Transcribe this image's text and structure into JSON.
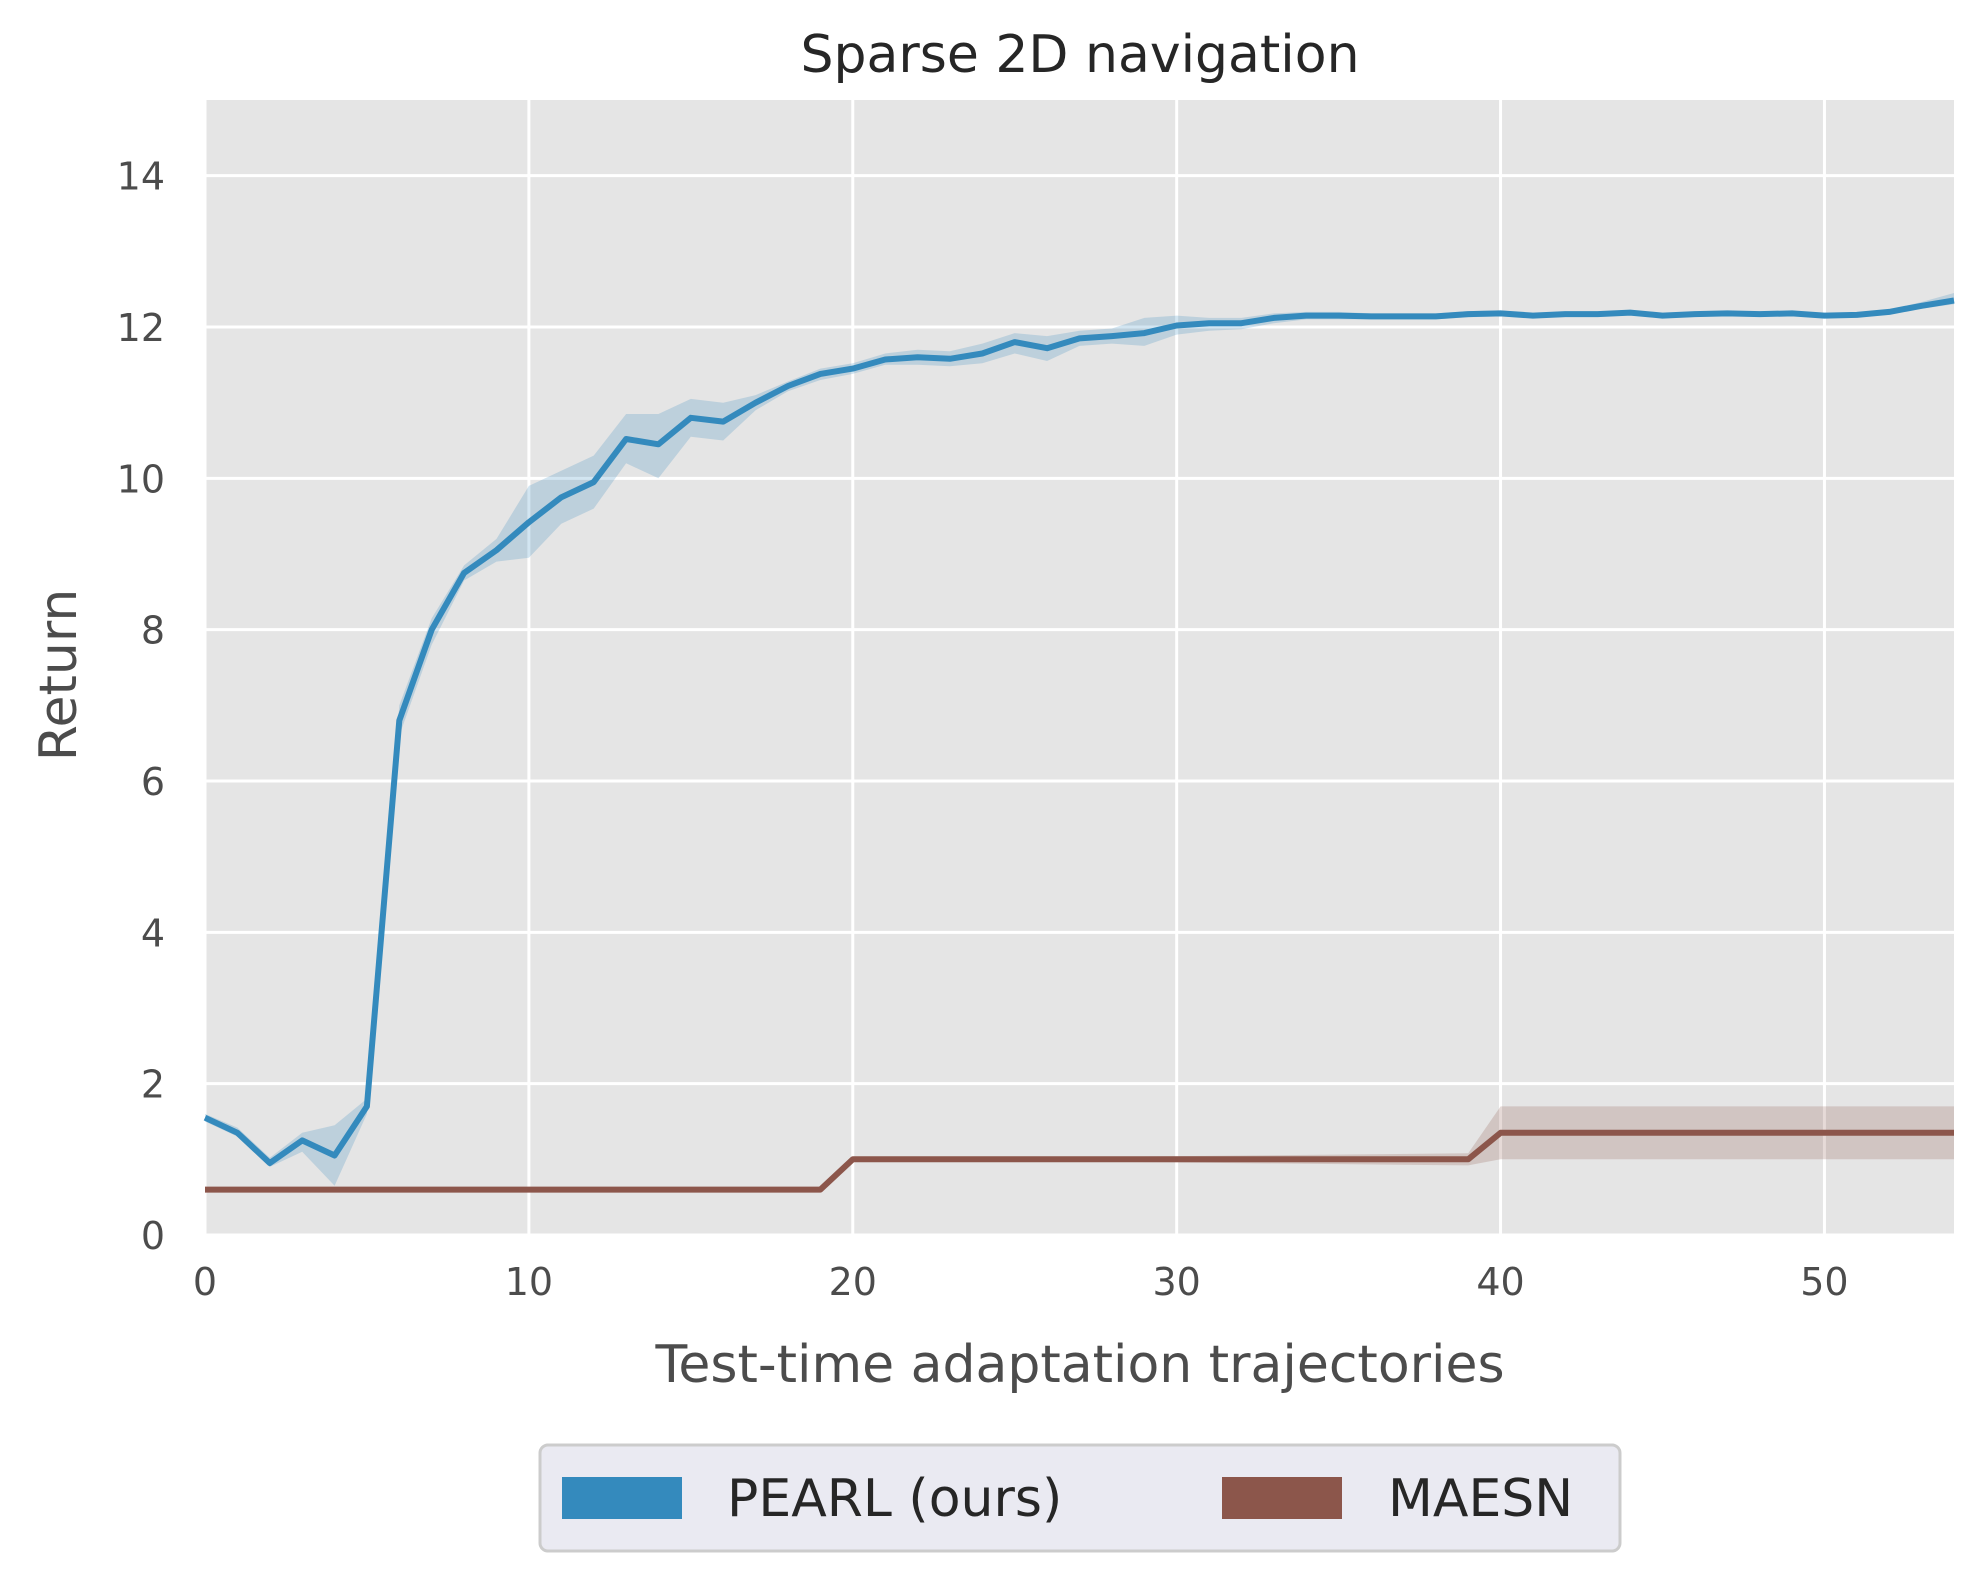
{
  "chart_data": {
    "type": "line",
    "title": "Sparse 2D navigation",
    "xlabel": "Test-time adaptation trajectories",
    "ylabel": "Return",
    "xlim": [
      0,
      54
    ],
    "ylim": [
      0,
      15
    ],
    "xticks": [
      0,
      10,
      20,
      30,
      40,
      50
    ],
    "yticks": [
      0,
      2,
      4,
      6,
      8,
      10,
      12,
      14
    ],
    "grid": true,
    "legend_position": "bottom-center",
    "series": [
      {
        "name": "PEARL (ours)",
        "color": "#348abd",
        "x": [
          0,
          1,
          2,
          3,
          4,
          5,
          6,
          7,
          8,
          9,
          10,
          11,
          12,
          13,
          14,
          15,
          16,
          17,
          18,
          19,
          20,
          21,
          22,
          23,
          24,
          25,
          26,
          27,
          28,
          29,
          30,
          31,
          32,
          33,
          34,
          35,
          36,
          37,
          38,
          39,
          40,
          41,
          42,
          43,
          44,
          45,
          46,
          47,
          48,
          49,
          50,
          51,
          52,
          53,
          54
        ],
        "y": [
          1.55,
          1.35,
          0.95,
          1.25,
          1.05,
          1.7,
          6.8,
          8.0,
          8.75,
          9.05,
          9.42,
          9.75,
          9.95,
          10.52,
          10.45,
          10.8,
          10.75,
          11.0,
          11.22,
          11.38,
          11.45,
          11.57,
          11.6,
          11.58,
          11.65,
          11.8,
          11.72,
          11.85,
          11.88,
          11.92,
          12.02,
          12.05,
          12.05,
          12.12,
          12.15,
          12.15,
          12.14,
          12.14,
          12.14,
          12.17,
          12.18,
          12.15,
          12.17,
          12.17,
          12.19,
          12.15,
          12.17,
          12.18,
          12.17,
          12.18,
          12.15,
          12.16,
          12.2,
          12.28,
          12.35
        ],
        "lower": [
          1.5,
          1.3,
          0.9,
          1.1,
          0.65,
          1.6,
          6.6,
          7.8,
          8.65,
          8.9,
          8.95,
          9.4,
          9.6,
          10.2,
          10.0,
          10.55,
          10.5,
          10.9,
          11.15,
          11.3,
          11.38,
          11.5,
          11.5,
          11.48,
          11.52,
          11.65,
          11.55,
          11.75,
          11.78,
          11.75,
          11.9,
          11.95,
          11.97,
          12.05,
          12.1,
          12.1,
          12.1,
          12.1,
          12.1,
          12.13,
          12.14,
          12.12,
          12.14,
          12.14,
          12.16,
          12.12,
          12.14,
          12.15,
          12.14,
          12.15,
          12.12,
          12.13,
          12.17,
          12.24,
          12.3
        ],
        "upper": [
          1.6,
          1.42,
          1.02,
          1.35,
          1.45,
          1.8,
          7.0,
          8.15,
          8.85,
          9.2,
          9.9,
          10.1,
          10.3,
          10.85,
          10.85,
          11.05,
          11.0,
          11.1,
          11.28,
          11.45,
          11.52,
          11.65,
          11.7,
          11.68,
          11.78,
          11.92,
          11.88,
          11.95,
          11.98,
          12.12,
          12.15,
          12.12,
          12.12,
          12.18,
          12.2,
          12.2,
          12.18,
          12.18,
          12.18,
          12.21,
          12.22,
          12.18,
          12.2,
          12.2,
          12.22,
          12.18,
          12.2,
          12.21,
          12.2,
          12.21,
          12.18,
          12.19,
          12.23,
          12.33,
          12.45
        ]
      },
      {
        "name": "MAESN",
        "color": "#8c564b",
        "x": [
          0,
          19,
          20,
          39,
          40,
          54
        ],
        "y": [
          0.6,
          0.6,
          1.0,
          1.0,
          1.35,
          1.35
        ],
        "lower": [
          0.6,
          0.6,
          1.0,
          0.92,
          1.0,
          1.0
        ],
        "upper": [
          0.6,
          0.6,
          1.0,
          1.08,
          1.7,
          1.7
        ]
      }
    ]
  }
}
